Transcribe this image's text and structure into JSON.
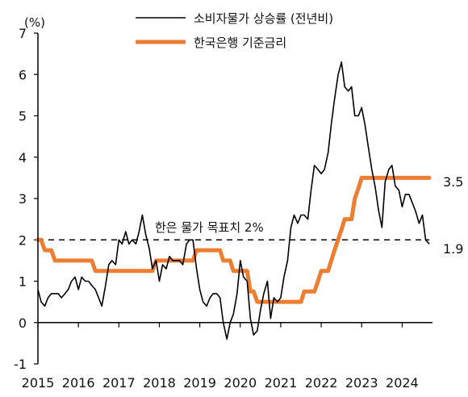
{
  "chart_data": {
    "type": "line",
    "ylabel": "(%)",
    "ylim": [
      -1,
      7
    ],
    "yticks": [
      -1,
      0,
      1,
      2,
      3,
      4,
      5,
      6,
      7
    ],
    "xlim": [
      2015.0,
      2024.75
    ],
    "xticks": [
      "2015",
      "2016",
      "2017",
      "2018",
      "2019",
      "2020",
      "2021",
      "2022",
      "2023",
      "2024"
    ],
    "grid": false,
    "legend_position": "top-center",
    "annotation": {
      "label": "한은 물가 목표치 2%",
      "y": 2
    },
    "end_labels": [
      "3.5",
      "1.9"
    ],
    "series": [
      {
        "name": "소비자물가 상승률 (전년비)",
        "color": "#000000",
        "values": [
          [
            2015.0,
            0.8
          ],
          [
            2015.08,
            0.5
          ],
          [
            2015.17,
            0.4
          ],
          [
            2015.25,
            0.6
          ],
          [
            2015.33,
            0.7
          ],
          [
            2015.42,
            0.7
          ],
          [
            2015.5,
            0.7
          ],
          [
            2015.58,
            0.6
          ],
          [
            2015.67,
            0.7
          ],
          [
            2015.75,
            0.8
          ],
          [
            2015.83,
            1.0
          ],
          [
            2015.92,
            1.1
          ],
          [
            2016.0,
            0.8
          ],
          [
            2016.08,
            1.1
          ],
          [
            2016.17,
            1.0
          ],
          [
            2016.25,
            1.0
          ],
          [
            2016.33,
            0.9
          ],
          [
            2016.42,
            0.8
          ],
          [
            2016.5,
            0.6
          ],
          [
            2016.58,
            0.4
          ],
          [
            2016.67,
            0.9
          ],
          [
            2016.75,
            1.4
          ],
          [
            2016.83,
            1.5
          ],
          [
            2016.92,
            1.4
          ],
          [
            2017.0,
            2.0
          ],
          [
            2017.08,
            1.9
          ],
          [
            2017.17,
            2.2
          ],
          [
            2017.25,
            1.9
          ],
          [
            2017.33,
            2.0
          ],
          [
            2017.42,
            1.9
          ],
          [
            2017.5,
            2.2
          ],
          [
            2017.58,
            2.6
          ],
          [
            2017.67,
            2.1
          ],
          [
            2017.75,
            1.8
          ],
          [
            2017.83,
            1.3
          ],
          [
            2017.92,
            1.5
          ],
          [
            2018.0,
            1.0
          ],
          [
            2018.08,
            1.4
          ],
          [
            2018.17,
            1.3
          ],
          [
            2018.25,
            1.6
          ],
          [
            2018.33,
            1.5
          ],
          [
            2018.42,
            1.5
          ],
          [
            2018.5,
            1.5
          ],
          [
            2018.58,
            1.4
          ],
          [
            2018.67,
            1.9
          ],
          [
            2018.75,
            2.0
          ],
          [
            2018.83,
            2.0
          ],
          [
            2018.92,
            1.3
          ],
          [
            2019.0,
            0.8
          ],
          [
            2019.08,
            0.5
          ],
          [
            2019.17,
            0.4
          ],
          [
            2019.25,
            0.6
          ],
          [
            2019.33,
            0.7
          ],
          [
            2019.42,
            0.7
          ],
          [
            2019.5,
            0.6
          ],
          [
            2019.58,
            0.0
          ],
          [
            2019.67,
            -0.4
          ],
          [
            2019.75,
            0.0
          ],
          [
            2019.83,
            0.2
          ],
          [
            2019.92,
            0.7
          ],
          [
            2020.0,
            1.5
          ],
          [
            2020.08,
            1.1
          ],
          [
            2020.17,
            1.0
          ],
          [
            2020.25,
            0.1
          ],
          [
            2020.33,
            -0.3
          ],
          [
            2020.42,
            -0.2
          ],
          [
            2020.5,
            0.3
          ],
          [
            2020.58,
            0.7
          ],
          [
            2020.67,
            1.0
          ],
          [
            2020.75,
            0.1
          ],
          [
            2020.83,
            0.6
          ],
          [
            2020.92,
            0.5
          ],
          [
            2021.0,
            0.6
          ],
          [
            2021.08,
            1.1
          ],
          [
            2021.17,
            1.5
          ],
          [
            2021.25,
            2.3
          ],
          [
            2021.33,
            2.6
          ],
          [
            2021.42,
            2.4
          ],
          [
            2021.5,
            2.6
          ],
          [
            2021.58,
            2.6
          ],
          [
            2021.67,
            2.5
          ],
          [
            2021.75,
            3.2
          ],
          [
            2021.83,
            3.8
          ],
          [
            2021.92,
            3.7
          ],
          [
            2022.0,
            3.6
          ],
          [
            2022.08,
            3.7
          ],
          [
            2022.17,
            4.1
          ],
          [
            2022.25,
            4.8
          ],
          [
            2022.33,
            5.4
          ],
          [
            2022.42,
            6.0
          ],
          [
            2022.5,
            6.3
          ],
          [
            2022.58,
            5.7
          ],
          [
            2022.67,
            5.6
          ],
          [
            2022.75,
            5.7
          ],
          [
            2022.83,
            5.0
          ],
          [
            2022.92,
            5.0
          ],
          [
            2023.0,
            5.2
          ],
          [
            2023.08,
            4.8
          ],
          [
            2023.17,
            4.2
          ],
          [
            2023.25,
            3.7
          ],
          [
            2023.33,
            3.3
          ],
          [
            2023.42,
            2.7
          ],
          [
            2023.5,
            2.3
          ],
          [
            2023.58,
            3.4
          ],
          [
            2023.67,
            3.7
          ],
          [
            2023.75,
            3.8
          ],
          [
            2023.83,
            3.3
          ],
          [
            2023.92,
            3.2
          ],
          [
            2024.0,
            2.8
          ],
          [
            2024.08,
            3.1
          ],
          [
            2024.17,
            3.1
          ],
          [
            2024.25,
            2.9
          ],
          [
            2024.33,
            2.7
          ],
          [
            2024.42,
            2.4
          ],
          [
            2024.5,
            2.6
          ],
          [
            2024.58,
            2.0
          ],
          [
            2024.67,
            1.9
          ]
        ]
      },
      {
        "name": "한국은행 기준금리",
        "color": "#ED7D31",
        "values": [
          [
            2015.0,
            2.0
          ],
          [
            2015.08,
            2.0
          ],
          [
            2015.17,
            1.75
          ],
          [
            2015.25,
            1.75
          ],
          [
            2015.33,
            1.75
          ],
          [
            2015.42,
            1.5
          ],
          [
            2015.5,
            1.5
          ],
          [
            2016.0,
            1.5
          ],
          [
            2016.33,
            1.5
          ],
          [
            2016.42,
            1.25
          ],
          [
            2016.5,
            1.25
          ],
          [
            2017.0,
            1.25
          ],
          [
            2017.75,
            1.25
          ],
          [
            2017.83,
            1.25
          ],
          [
            2017.92,
            1.5
          ],
          [
            2018.0,
            1.5
          ],
          [
            2018.83,
            1.5
          ],
          [
            2018.92,
            1.75
          ],
          [
            2019.0,
            1.75
          ],
          [
            2019.5,
            1.75
          ],
          [
            2019.58,
            1.5
          ],
          [
            2019.75,
            1.5
          ],
          [
            2019.83,
            1.25
          ],
          [
            2020.0,
            1.25
          ],
          [
            2020.17,
            1.25
          ],
          [
            2020.25,
            0.75
          ],
          [
            2020.33,
            0.75
          ],
          [
            2020.42,
            0.5
          ],
          [
            2021.0,
            0.5
          ],
          [
            2021.5,
            0.5
          ],
          [
            2021.58,
            0.75
          ],
          [
            2021.83,
            0.75
          ],
          [
            2021.92,
            1.0
          ],
          [
            2022.0,
            1.25
          ],
          [
            2022.17,
            1.25
          ],
          [
            2022.25,
            1.5
          ],
          [
            2022.33,
            1.75
          ],
          [
            2022.5,
            2.25
          ],
          [
            2022.58,
            2.5
          ],
          [
            2022.75,
            2.5
          ],
          [
            2022.83,
            3.0
          ],
          [
            2022.92,
            3.25
          ],
          [
            2023.0,
            3.5
          ],
          [
            2024.67,
            3.5
          ]
        ]
      }
    ]
  }
}
